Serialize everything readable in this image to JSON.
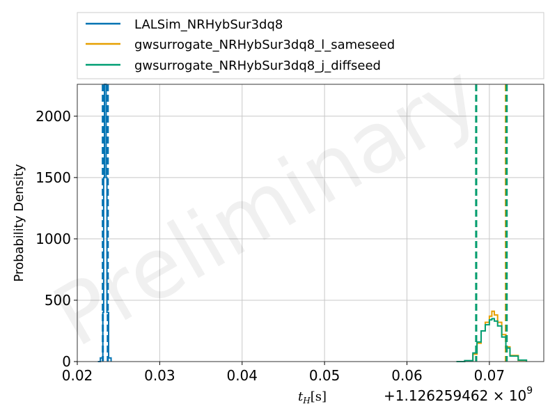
{
  "chart_data": {
    "type": "line",
    "title": "",
    "xlabel_main": "t",
    "xlabel_sub": "H",
    "xlabel_unit": "[s]",
    "ylabel": "Probability Density",
    "x_offset": "+1.126259462 × 10",
    "x_offset_exponent": "9",
    "watermark": "Preliminary",
    "xlim": [
      0.02,
      0.0766
    ],
    "ylim": [
      0,
      2260
    ],
    "xticks": [
      0.02,
      0.03,
      0.04,
      0.05,
      0.06,
      0.07
    ],
    "xtick_labels": [
      "0.02",
      "0.03",
      "0.04",
      "0.05",
      "0.06",
      "0.07"
    ],
    "yticks": [
      0,
      500,
      1000,
      1500,
      2000
    ],
    "ytick_labels": [
      "0",
      "500",
      "1000",
      "1500",
      "2000"
    ],
    "grid": true,
    "legend_placement": "top, outside plot",
    "series": [
      {
        "name": "LALSim_NRHybSur3dq8",
        "color": "#0072B2",
        "histogram": {
          "x": [
            0.0225,
            0.0228,
            0.0231,
            0.0232,
            0.0233,
            0.0234,
            0.0235,
            0.0236,
            0.0238,
            0.0241
          ],
          "y": [
            0,
            30,
            400,
            1500,
            2260,
            2260,
            1500,
            400,
            30,
            0
          ]
        },
        "vlines": [
          0.0231,
          0.0237
        ]
      },
      {
        "name": "gwsurrogate_NRHybSur3dq8_l_sameseed",
        "color": "#E69F00",
        "histogram": {
          "x": [
            0.066,
            0.067,
            0.068,
            0.0685,
            0.069,
            0.0695,
            0.07,
            0.0703,
            0.0706,
            0.071,
            0.0715,
            0.072,
            0.0725,
            0.0735,
            0.0745
          ],
          "y": [
            0,
            5,
            60,
            150,
            250,
            320,
            370,
            410,
            380,
            320,
            220,
            120,
            50,
            10,
            0
          ]
        },
        "vlines": [
          0.0684,
          0.072
        ]
      },
      {
        "name": "gwsurrogate_NRHybSur3dq8_j_diffseed",
        "color": "#009E73",
        "histogram": {
          "x": [
            0.066,
            0.067,
            0.068,
            0.0685,
            0.069,
            0.0695,
            0.07,
            0.0703,
            0.0706,
            0.071,
            0.0715,
            0.072,
            0.0725,
            0.0735,
            0.0745
          ],
          "y": [
            0,
            8,
            70,
            160,
            250,
            300,
            340,
            350,
            330,
            290,
            200,
            110,
            45,
            12,
            0
          ]
        },
        "vlines": [
          0.0684,
          0.0721
        ]
      }
    ]
  }
}
